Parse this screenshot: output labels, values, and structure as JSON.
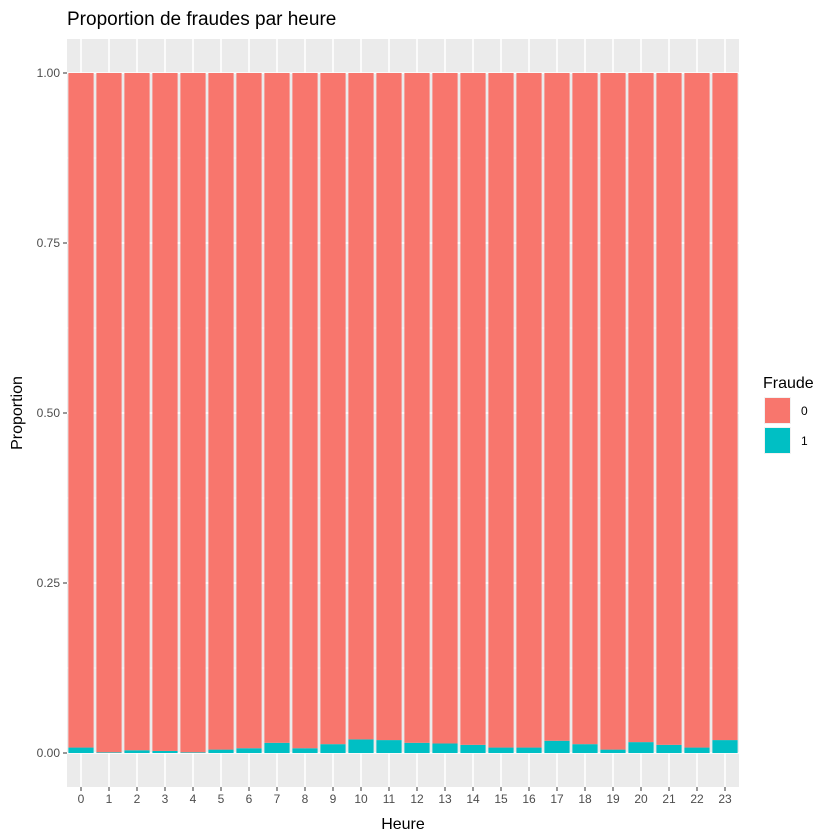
{
  "chart_data": {
    "type": "bar",
    "stacked": true,
    "title": "Proportion de fraudes par heure",
    "xlabel": "Heure",
    "ylabel": "Proportion",
    "ylim": [
      0,
      1
    ],
    "yticks": [
      0,
      0.25,
      0.5,
      0.75,
      1
    ],
    "ytick_labels": [
      "0.00",
      "0.25",
      "0.50",
      "0.75",
      "1.00"
    ],
    "grid": true,
    "legend_position": "right",
    "categories": [
      "0",
      "1",
      "2",
      "3",
      "4",
      "5",
      "6",
      "7",
      "8",
      "9",
      "10",
      "11",
      "12",
      "13",
      "14",
      "15",
      "16",
      "17",
      "18",
      "19",
      "20",
      "21",
      "22",
      "23"
    ],
    "series": [
      {
        "name": "0",
        "color": "#F8766D",
        "values": [
          0.992,
          0.999,
          0.996,
          0.997,
          0.999,
          0.995,
          0.993,
          0.985,
          0.993,
          0.987,
          0.98,
          0.981,
          0.985,
          0.986,
          0.988,
          0.992,
          0.992,
          0.982,
          0.987,
          0.995,
          0.984,
          0.988,
          0.992,
          0.981
        ]
      },
      {
        "name": "1",
        "color": "#00BFC4",
        "values": [
          0.008,
          0.001,
          0.004,
          0.003,
          0.001,
          0.005,
          0.007,
          0.015,
          0.007,
          0.013,
          0.02,
          0.019,
          0.015,
          0.014,
          0.012,
          0.008,
          0.008,
          0.018,
          0.013,
          0.005,
          0.016,
          0.012,
          0.008,
          0.019
        ]
      }
    ],
    "legend_title": "Fraude"
  }
}
